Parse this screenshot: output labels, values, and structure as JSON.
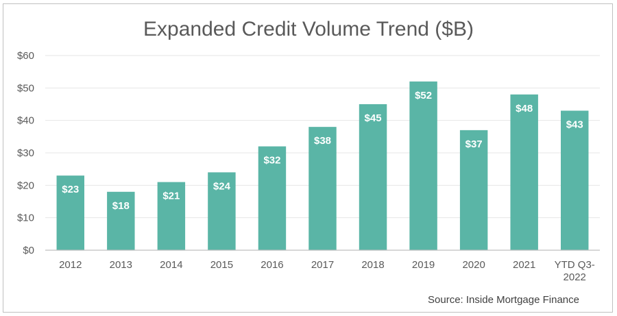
{
  "chart_data": {
    "type": "bar",
    "title": "Expanded Credit Volume Trend ($B)",
    "categories": [
      "2012",
      "2013",
      "2014",
      "2015",
      "2016",
      "2017",
      "2018",
      "2019",
      "2020",
      "2021",
      "YTD Q3-2022"
    ],
    "category_lines": [
      [
        "2012"
      ],
      [
        "2013"
      ],
      [
        "2014"
      ],
      [
        "2015"
      ],
      [
        "2016"
      ],
      [
        "2017"
      ],
      [
        "2018"
      ],
      [
        "2019"
      ],
      [
        "2020"
      ],
      [
        "2021"
      ],
      [
        "YTD Q3-",
        "2022"
      ]
    ],
    "values": [
      23,
      18,
      21,
      24,
      32,
      38,
      45,
      52,
      37,
      48,
      43
    ],
    "data_labels": [
      "$23",
      "$18",
      "$21",
      "$24",
      "$32",
      "$38",
      "$45",
      "$52",
      "$37",
      "$48",
      "$43"
    ],
    "ylim": [
      0,
      60
    ],
    "yticks": [
      0,
      10,
      20,
      30,
      40,
      50,
      60
    ],
    "ytick_labels": [
      "$0",
      "$10",
      "$20",
      "$30",
      "$40",
      "$50",
      "$60"
    ],
    "grid": true,
    "bar_color": "#5ab5a6",
    "source": "Source: Inside Mortgage Finance"
  }
}
